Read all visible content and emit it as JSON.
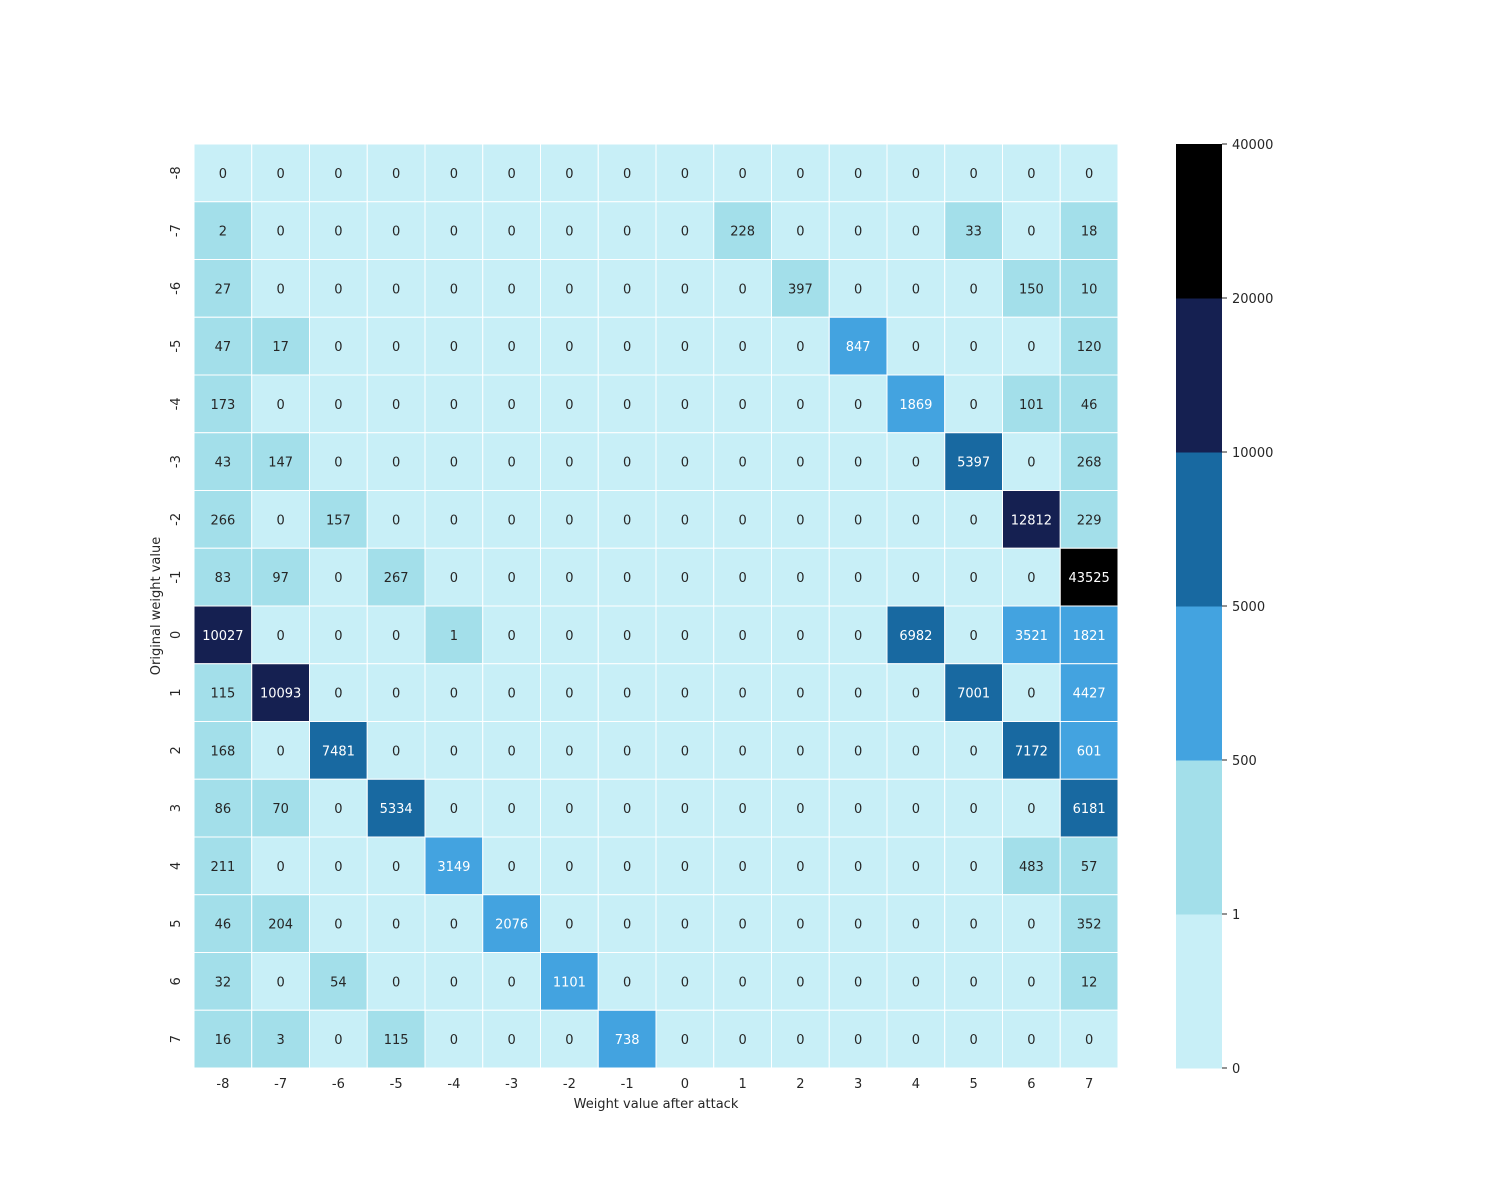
{
  "chart_data": {
    "type": "heatmap",
    "title": "",
    "xlabel": "Weight value after attack",
    "ylabel": "Original weight value",
    "x_ticks": [
      "-8",
      "-7",
      "-6",
      "-5",
      "-4",
      "-3",
      "-2",
      "-1",
      "0",
      "1",
      "2",
      "3",
      "4",
      "5",
      "6",
      "7"
    ],
    "y_ticks": [
      "-8",
      "-7",
      "-6",
      "-5",
      "-4",
      "-3",
      "-2",
      "-1",
      "0",
      "1",
      "2",
      "3",
      "4",
      "5",
      "6",
      "7"
    ],
    "values": [
      [
        0,
        0,
        0,
        0,
        0,
        0,
        0,
        0,
        0,
        0,
        0,
        0,
        0,
        0,
        0,
        0
      ],
      [
        2,
        0,
        0,
        0,
        0,
        0,
        0,
        0,
        0,
        228,
        0,
        0,
        0,
        33,
        0,
        18
      ],
      [
        27,
        0,
        0,
        0,
        0,
        0,
        0,
        0,
        0,
        0,
        397,
        0,
        0,
        0,
        150,
        10
      ],
      [
        47,
        17,
        0,
        0,
        0,
        0,
        0,
        0,
        0,
        0,
        0,
        847,
        0,
        0,
        0,
        120
      ],
      [
        173,
        0,
        0,
        0,
        0,
        0,
        0,
        0,
        0,
        0,
        0,
        0,
        1869,
        0,
        101,
        46
      ],
      [
        43,
        147,
        0,
        0,
        0,
        0,
        0,
        0,
        0,
        0,
        0,
        0,
        0,
        5397,
        0,
        268
      ],
      [
        266,
        0,
        157,
        0,
        0,
        0,
        0,
        0,
        0,
        0,
        0,
        0,
        0,
        0,
        12812,
        229
      ],
      [
        83,
        97,
        0,
        267,
        0,
        0,
        0,
        0,
        0,
        0,
        0,
        0,
        0,
        0,
        0,
        43525
      ],
      [
        10027,
        0,
        0,
        0,
        1,
        0,
        0,
        0,
        0,
        0,
        0,
        0,
        6982,
        0,
        3521,
        1821
      ],
      [
        115,
        10093,
        0,
        0,
        0,
        0,
        0,
        0,
        0,
        0,
        0,
        0,
        0,
        7001,
        0,
        4427
      ],
      [
        168,
        0,
        7481,
        0,
        0,
        0,
        0,
        0,
        0,
        0,
        0,
        0,
        0,
        0,
        7172,
        601
      ],
      [
        86,
        70,
        0,
        5334,
        0,
        0,
        0,
        0,
        0,
        0,
        0,
        0,
        0,
        0,
        0,
        6181
      ],
      [
        211,
        0,
        0,
        0,
        3149,
        0,
        0,
        0,
        0,
        0,
        0,
        0,
        0,
        0,
        483,
        57
      ],
      [
        46,
        204,
        0,
        0,
        0,
        2076,
        0,
        0,
        0,
        0,
        0,
        0,
        0,
        0,
        0,
        352
      ],
      [
        32,
        0,
        54,
        0,
        0,
        0,
        1101,
        0,
        0,
        0,
        0,
        0,
        0,
        0,
        0,
        12
      ],
      [
        16,
        3,
        0,
        115,
        0,
        0,
        0,
        738,
        0,
        0,
        0,
        0,
        0,
        0,
        0,
        0
      ]
    ],
    "colorbar": {
      "bounds": [
        0,
        1,
        500,
        5000,
        10000,
        20000,
        40000
      ],
      "tick_labels": [
        "0",
        "1",
        "500",
        "5000",
        "10000",
        "20000",
        "40000"
      ],
      "colors": [
        "#c8eff7",
        "#a3dfea",
        "#43a3e0",
        "#1869a1",
        "#152051",
        "#000000"
      ],
      "dark_text_levels": 2
    },
    "grid": true,
    "legend": "colorbar-right"
  }
}
